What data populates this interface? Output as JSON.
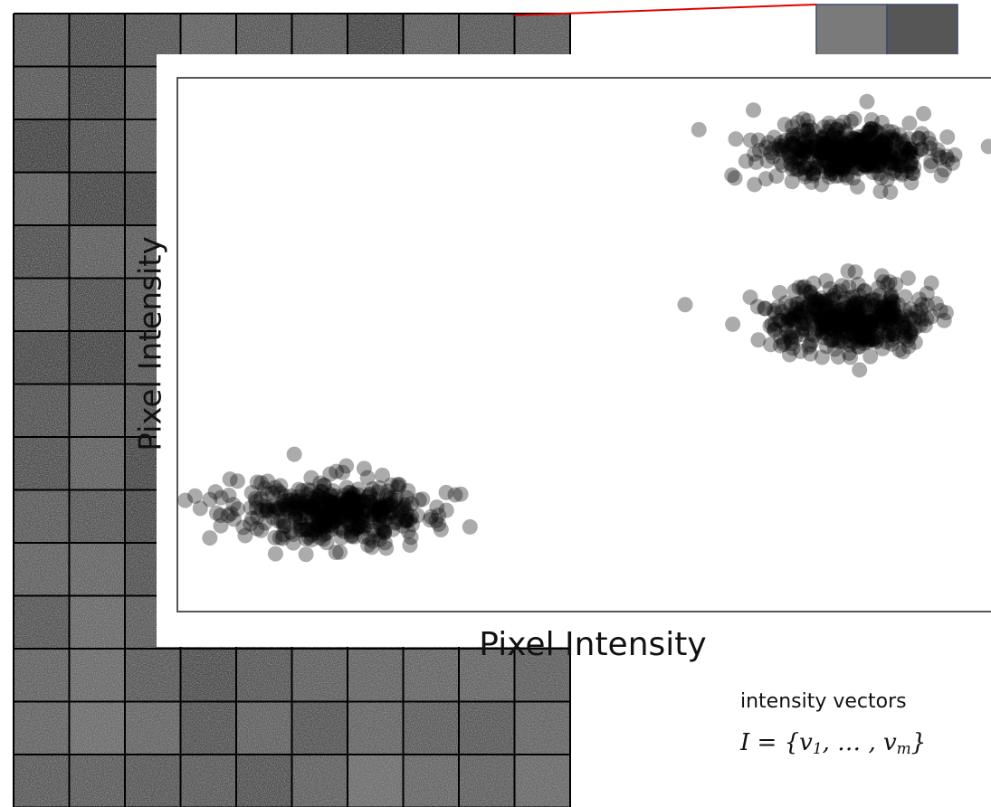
{
  "labels": {
    "y_axis": "Pixel Intensity",
    "x_axis": "Pixel Intensity"
  },
  "caption": "intensity vectors",
  "formula": [
    "I = {v",
    "1",
    ", … , v",
    "m",
    "}"
  ]
}
